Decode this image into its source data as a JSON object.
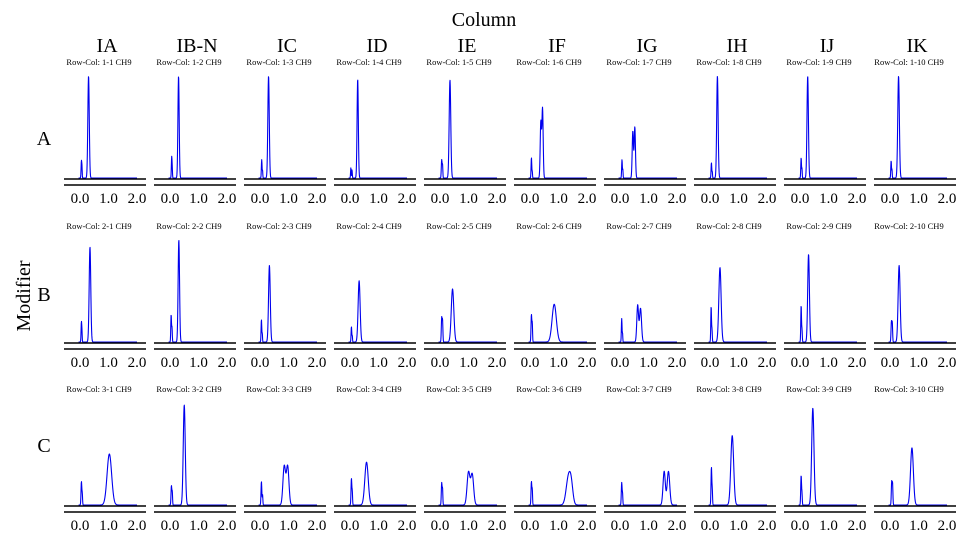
{
  "figure": {
    "title": "Column",
    "ylabel": "Modifier",
    "columns": [
      "IA",
      "IB-N",
      "IC",
      "ID",
      "IE",
      "IF",
      "IG",
      "IH",
      "IJ",
      "IK"
    ],
    "rows": [
      "A",
      "B",
      "C"
    ]
  },
  "colors": {
    "trace": "#0000ee",
    "axis": "#000000"
  },
  "chart_data": {
    "type": "line",
    "xlim": [
      0,
      2.0
    ],
    "xticks": [
      "0.0",
      "1.0",
      "2.0"
    ],
    "ylim": [
      0,
      1
    ],
    "panels": [
      {
        "title": "Row-Col: 1-1 CH9",
        "peaks": [
          [
            0.05,
            0.17,
            0.012
          ],
          [
            0.07,
            0.08,
            0.008
          ],
          [
            0.3,
            1.0,
            0.025
          ]
        ]
      },
      {
        "title": "Row-Col: 1-2 CH9",
        "peaks": [
          [
            0.06,
            0.21,
            0.012
          ],
          [
            0.08,
            0.06,
            0.008
          ],
          [
            0.3,
            1.0,
            0.022
          ]
        ]
      },
      {
        "title": "Row-Col: 1-3 CH9",
        "peaks": [
          [
            0.06,
            0.18,
            0.012
          ],
          [
            0.09,
            0.07,
            0.008
          ],
          [
            0.3,
            1.0,
            0.025
          ]
        ]
      },
      {
        "title": "Row-Col: 1-4 CH9",
        "peaks": [
          [
            0.03,
            0.1,
            0.01
          ],
          [
            0.07,
            0.08,
            0.01
          ],
          [
            0.27,
            0.97,
            0.022
          ]
        ]
      },
      {
        "title": "Row-Col: 1-5 CH9",
        "peaks": [
          [
            0.06,
            0.18,
            0.014
          ],
          [
            0.09,
            0.12,
            0.01
          ],
          [
            0.35,
            0.96,
            0.028
          ]
        ]
      },
      {
        "title": "Row-Col: 1-6 CH9",
        "peaks": [
          [
            0.05,
            0.2,
            0.012
          ],
          [
            0.08,
            0.06,
            0.008
          ],
          [
            0.38,
            0.55,
            0.022
          ],
          [
            0.44,
            0.68,
            0.022
          ]
        ]
      },
      {
        "title": "Row-Col: 1-7 CH9",
        "peaks": [
          [
            0.07,
            0.18,
            0.012
          ],
          [
            0.1,
            0.08,
            0.008
          ],
          [
            0.45,
            0.46,
            0.022
          ],
          [
            0.52,
            0.5,
            0.022
          ]
        ]
      },
      {
        "title": "Row-Col: 1-8 CH9",
        "peaks": [
          [
            0.05,
            0.15,
            0.012
          ],
          [
            0.08,
            0.06,
            0.008
          ],
          [
            0.26,
            1.0,
            0.025
          ]
        ]
      },
      {
        "title": "Row-Col: 1-9 CH9",
        "peaks": [
          [
            0.04,
            0.2,
            0.012
          ],
          [
            0.07,
            0.09,
            0.008
          ],
          [
            0.27,
            1.0,
            0.025
          ]
        ]
      },
      {
        "title": "Row-Col: 1-10 CH9",
        "peaks": [
          [
            0.04,
            0.17,
            0.012
          ],
          [
            0.07,
            0.08,
            0.008
          ],
          [
            0.3,
            1.0,
            0.028
          ]
        ]
      },
      {
        "title": "Row-Col: 2-1 CH9",
        "peaks": [
          [
            0.05,
            0.2,
            0.012
          ],
          [
            0.07,
            0.07,
            0.008
          ],
          [
            0.35,
            0.93,
            0.028
          ]
        ]
      },
      {
        "title": "Row-Col: 2-2 CH9",
        "peaks": [
          [
            0.04,
            0.27,
            0.012
          ],
          [
            0.07,
            0.14,
            0.01
          ],
          [
            0.31,
            1.0,
            0.025
          ]
        ]
      },
      {
        "title": "Row-Col: 2-3 CH9",
        "peaks": [
          [
            0.05,
            0.22,
            0.012
          ],
          [
            0.08,
            0.08,
            0.008
          ],
          [
            0.33,
            0.75,
            0.03
          ]
        ]
      },
      {
        "title": "Row-Col: 2-4 CH9",
        "peaks": [
          [
            0.05,
            0.15,
            0.012
          ],
          [
            0.08,
            0.06,
            0.008
          ],
          [
            0.32,
            0.6,
            0.035
          ]
        ]
      },
      {
        "title": "Row-Col: 2-5 CH9",
        "peaks": [
          [
            0.06,
            0.24,
            0.014
          ],
          [
            0.09,
            0.2,
            0.012
          ],
          [
            0.44,
            0.52,
            0.045
          ]
        ]
      },
      {
        "title": "Row-Col: 2-6 CH9",
        "peaks": [
          [
            0.05,
            0.27,
            0.014
          ],
          [
            0.08,
            0.17,
            0.01
          ],
          [
            0.85,
            0.37,
            0.075
          ]
        ]
      },
      {
        "title": "Row-Col: 2-7 CH9",
        "peaks": [
          [
            0.06,
            0.23,
            0.012
          ],
          [
            0.09,
            0.08,
            0.008
          ],
          [
            0.62,
            0.36,
            0.03
          ],
          [
            0.72,
            0.33,
            0.035
          ]
        ]
      },
      {
        "title": "Row-Col: 2-8 CH9",
        "peaks": [
          [
            0.04,
            0.35,
            0.012
          ],
          [
            0.07,
            0.12,
            0.01
          ],
          [
            0.35,
            0.73,
            0.04
          ]
        ]
      },
      {
        "title": "Row-Col: 2-9 CH9",
        "peaks": [
          [
            0.04,
            0.36,
            0.012
          ],
          [
            0.07,
            0.12,
            0.01
          ],
          [
            0.3,
            0.86,
            0.03
          ]
        ]
      },
      {
        "title": "Row-Col: 2-10 CH9",
        "peaks": [
          [
            0.05,
            0.2,
            0.014
          ],
          [
            0.08,
            0.18,
            0.012
          ],
          [
            0.32,
            0.75,
            0.035
          ]
        ]
      },
      {
        "title": "Row-Col: 3-1 CH9",
        "peaks": [
          [
            0.05,
            0.23,
            0.014
          ],
          [
            0.08,
            0.1,
            0.01
          ],
          [
            1.03,
            0.5,
            0.08
          ]
        ]
      },
      {
        "title": "Row-Col: 3-2 CH9",
        "peaks": [
          [
            0.05,
            0.19,
            0.014
          ],
          [
            0.08,
            0.12,
            0.01
          ],
          [
            0.5,
            0.98,
            0.035
          ]
        ]
      },
      {
        "title": "Row-Col: 3-3 CH9",
        "peaks": [
          [
            0.05,
            0.23,
            0.014
          ],
          [
            0.09,
            0.1,
            0.01
          ],
          [
            0.85,
            0.38,
            0.045
          ],
          [
            0.97,
            0.38,
            0.045
          ]
        ]
      },
      {
        "title": "Row-Col: 3-4 CH9",
        "peaks": [
          [
            0.05,
            0.26,
            0.014
          ],
          [
            0.08,
            0.12,
            0.01
          ],
          [
            0.58,
            0.42,
            0.06
          ]
        ]
      },
      {
        "title": "Row-Col: 3-5 CH9",
        "peaks": [
          [
            0.06,
            0.22,
            0.014
          ],
          [
            0.09,
            0.15,
            0.01
          ],
          [
            1.0,
            0.32,
            0.05
          ],
          [
            1.13,
            0.3,
            0.05
          ]
        ]
      },
      {
        "title": "Row-Col: 3-6 CH9",
        "peaks": [
          [
            0.05,
            0.23,
            0.014
          ],
          [
            0.08,
            0.14,
            0.01
          ],
          [
            1.35,
            0.27,
            0.08
          ],
          [
            1.45,
            0.15,
            0.06
          ]
        ]
      },
      {
        "title": "Row-Col: 3-7 CH9",
        "peaks": [
          [
            0.06,
            0.22,
            0.014
          ],
          [
            0.09,
            0.1,
            0.01
          ],
          [
            1.55,
            0.33,
            0.04
          ],
          [
            1.7,
            0.33,
            0.045
          ]
        ]
      },
      {
        "title": "Row-Col: 3-8 CH9",
        "peaks": [
          [
            0.05,
            0.37,
            0.014
          ],
          [
            0.08,
            0.13,
            0.01
          ],
          [
            0.78,
            0.68,
            0.05
          ]
        ]
      },
      {
        "title": "Row-Col: 3-9 CH9",
        "peaks": [
          [
            0.04,
            0.29,
            0.014
          ],
          [
            0.07,
            0.1,
            0.01
          ],
          [
            0.45,
            0.95,
            0.04
          ]
        ]
      },
      {
        "title": "Row-Col: 3-10 CH9",
        "peaks": [
          [
            0.06,
            0.23,
            0.014
          ],
          [
            0.09,
            0.2,
            0.012
          ],
          [
            0.77,
            0.56,
            0.05
          ]
        ]
      }
    ]
  }
}
